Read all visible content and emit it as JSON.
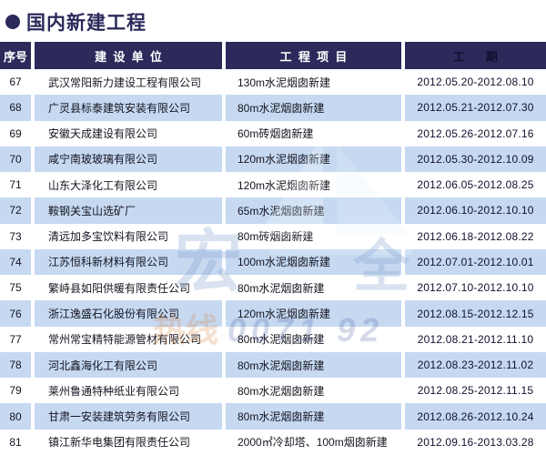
{
  "title": {
    "bullet_icon": "circle",
    "text": "国内新建工程"
  },
  "colors": {
    "navy_header": "#2b2a5b",
    "row_alt_blue": "#c6d9f1",
    "date_text": "#10102e"
  },
  "table": {
    "columns": [
      {
        "label": "序号"
      },
      {
        "label": "建  设  单  位"
      },
      {
        "label": "工  程  项  目"
      },
      {
        "label": "工      期"
      }
    ],
    "rows": [
      {
        "no": "67",
        "company": "武汉常阳新力建设工程有限公司",
        "project": "130m水泥烟囱新建",
        "period": "2012.05.20-2012.08.10"
      },
      {
        "no": "68",
        "company": "广灵县标泰建筑安装有限公司",
        "project": "80m水泥烟囱新建",
        "period": "2012.05.21-2012.07.30"
      },
      {
        "no": "69",
        "company": "安徽天成建设有限公司",
        "project": "60m砖烟囱新建",
        "period": "2012.05.26-2012.07.16"
      },
      {
        "no": "70",
        "company": "咸宁南玻玻璃有限公司",
        "project": "120m水泥烟囱新建",
        "period": "2012.05.30-2012.10.09"
      },
      {
        "no": "71",
        "company": "山东大泽化工有限公司",
        "project": "120m水泥烟囱新建",
        "period": "2012.06.05-2012.08.25"
      },
      {
        "no": "72",
        "company": "鞍钢关宝山选矿厂",
        "project": "65m水泥烟囱新建",
        "period": "2012.06.10-2012.10.10"
      },
      {
        "no": "73",
        "company": "清远加多宝饮料有限公司",
        "project": "80m砖烟囱新建",
        "period": "2012.06.18-2012.08.22"
      },
      {
        "no": "74",
        "company": "江苏恒科新材料有限公司",
        "project": "100m水泥烟囱新建",
        "period": "2012.07.01-2012.10.01"
      },
      {
        "no": "75",
        "company": "繁峙县如阳供暖有限责任公司",
        "project": "80m水泥烟囱新建",
        "period": "2012.07.10-2012.10.10"
      },
      {
        "no": "76",
        "company": "浙江逸盛石化股份有限公司",
        "project": "120m水泥烟囱新建",
        "period": "2012.08.15-2012.12.15"
      },
      {
        "no": "77",
        "company": "常州常宝精特能源管材有限公司",
        "project": "80m水泥烟囱新建",
        "period": "2012.08.21-2012.11.10"
      },
      {
        "no": "78",
        "company": "河北鑫海化工有限公司",
        "project": "80m水泥烟囱新建",
        "period": "2012.08.23-2012.11.02"
      },
      {
        "no": "79",
        "company": "莱州鲁通特种纸业有限公司",
        "project": "80m水泥烟囱新建",
        "period": "2012.08.25-2012.11.15"
      },
      {
        "no": "80",
        "company": "甘肃一安装建筑劳务有限公司",
        "project": "80m水泥烟囱新建",
        "period": "2012.08.26-2012.10.24"
      },
      {
        "no": "81",
        "company": "镇江新华电集团有限责任公司",
        "project": "2000㎡冷却塔、100m烟囱新建",
        "period": "2012.09.16-2013.03.28"
      }
    ]
  },
  "watermark": {
    "char_left": "宏",
    "char_right": "全",
    "hotline_label": "热线",
    "hotline_digits": "0071 92"
  }
}
